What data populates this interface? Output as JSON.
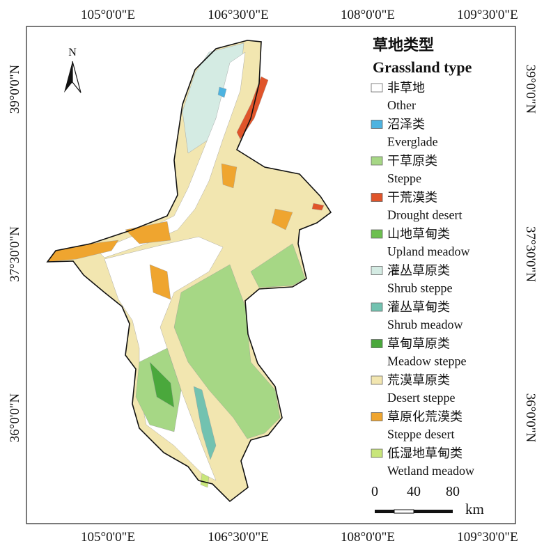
{
  "map": {
    "coordinates": {
      "top": [
        "105°0'0\"E",
        "106°30'0\"E",
        "108°0'0\"E",
        "109°30'0\"E"
      ],
      "bottom": [
        "105°0'0\"E",
        "106°30'0\"E",
        "108°0'0\"E",
        "109°30'0\"E"
      ],
      "left": [
        "39°0'0\"N",
        "37°30'0\"N",
        "36°0'0\"N"
      ],
      "right": [
        "39°0'0\"N",
        "37°30'0\"N",
        "36°0'0\"N"
      ]
    },
    "north_arrow": "N",
    "legend": {
      "title": "草地类型",
      "subtitle": "Grassland type",
      "items": [
        {
          "label_zh": "非草地",
          "label_en": "Other",
          "color": "#ffffff"
        },
        {
          "label_zh": "沼泽类",
          "label_en": "Everglade",
          "color": "#4db3e0"
        },
        {
          "label_zh": "干草原类",
          "label_en": "Steppe",
          "color": "#a6d785"
        },
        {
          "label_zh": "干荒漠类",
          "label_en": "Drought desert",
          "color": "#e0542a"
        },
        {
          "label_zh": "山地草甸类",
          "label_en": "Upland meadow",
          "color": "#6cbf4f"
        },
        {
          "label_zh": "灌丛草原类",
          "label_en": "Shrub steppe",
          "color": "#d4ebe3"
        },
        {
          "label_zh": "灌丛草甸类",
          "label_en": "Shrub meadow",
          "color": "#72c2b0"
        },
        {
          "label_zh": "草甸草原类",
          "label_en": "Meadow steppe",
          "color": "#4aa83c"
        },
        {
          "label_zh": "荒漠草原类",
          "label_en": "Desert steppe",
          "color": "#f2e6b0"
        },
        {
          "label_zh": "草原化荒漠类",
          "label_en": "Steppe desert",
          "color": "#efa52f"
        },
        {
          "label_zh": "低湿地草甸类",
          "label_en": "Wetland meadow",
          "color": "#c8e67a"
        }
      ]
    },
    "scale_bar": {
      "labels": [
        0,
        40,
        80
      ],
      "unit": "km"
    }
  }
}
